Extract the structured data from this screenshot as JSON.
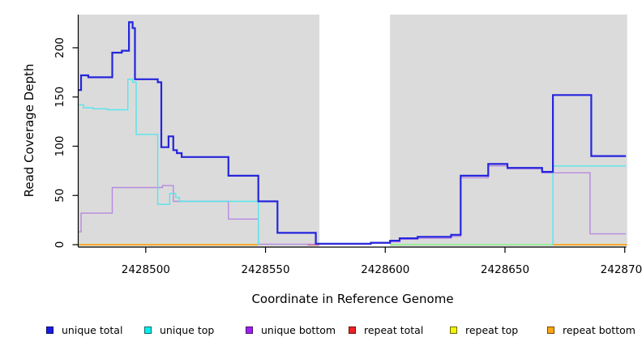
{
  "figure": {
    "background": "#ffffff",
    "plot_background": "#dbdbdb"
  },
  "legend": {
    "items": [
      {
        "label": "unique total",
        "color": "#1a1ae6"
      },
      {
        "label": "unique top",
        "color": "#00eeee"
      },
      {
        "label": "unique bottom",
        "color": "#a020f0"
      },
      {
        "label": "repeat total",
        "color": "#ee2222"
      },
      {
        "label": "repeat top",
        "color": "#f2f20a"
      },
      {
        "label": "repeat bottom",
        "color": "#ffa510"
      }
    ]
  },
  "chart_data": {
    "type": "line",
    "step": true,
    "title": "",
    "xlabel": "Coordinate in Reference Genome",
    "ylabel": "Read Coverage Depth",
    "xlim": [
      2428472,
      2428701
    ],
    "ylim": [
      0,
      234
    ],
    "x_ticks": [
      2428500,
      2428550,
      2428600,
      2428650,
      2428700
    ],
    "y_ticks": [
      0,
      50,
      100,
      150,
      200
    ],
    "grid": false,
    "legend_position": "bottom",
    "shaded_regions": [
      {
        "from": 2428472,
        "to": 2428572.5,
        "color": "#dbdbdb"
      },
      {
        "from": 2428602,
        "to": 2428701,
        "color": "#dbdbdb"
      }
    ],
    "series": [
      {
        "name": "repeat total",
        "color": "#ea4a55",
        "width": 1.6,
        "segments": [
          [
            [
              2428567.5,
              0
            ],
            [
              2428572.5,
              0
            ]
          ]
        ]
      },
      {
        "name": "repeat top",
        "color": "#90ee90",
        "width": 1.8,
        "appearance_note": "yellow line overlapping cyan at depth 0 renders pale green",
        "segments": [
          [
            [
              2428602,
              0
            ],
            [
              2428670,
              0
            ]
          ]
        ]
      },
      {
        "name": "repeat bottom",
        "color": "#ffa315",
        "width": 1.8,
        "segments": [
          [
            [
              2428472,
              0
            ],
            [
              2428547,
              0
            ]
          ],
          [
            [
              2428670,
              0
            ],
            [
              2428701,
              0
            ]
          ]
        ]
      },
      {
        "name": "unique bottom",
        "color": "#b78ae0",
        "width": 1.4,
        "segments": [
          [
            [
              2428472,
              13
            ],
            [
              2428473,
              32
            ],
            [
              2428486,
              58
            ],
            [
              2428507,
              60
            ],
            [
              2428511.5,
              44
            ],
            [
              2428534.5,
              26
            ],
            [
              2428547,
              0.5
            ],
            [
              2428571,
              0.4
            ],
            [
              2428594,
              1.5
            ],
            [
              2428602,
              3
            ],
            [
              2428606,
              5.5
            ],
            [
              2428613.5,
              6.5
            ],
            [
              2428627.5,
              8.5
            ],
            [
              2428631.5,
              68
            ],
            [
              2428643,
              80
            ],
            [
              2428651,
              77
            ],
            [
              2428665.5,
              73
            ],
            [
              2428685.5,
              11
            ],
            [
              2428700.5,
              11
            ]
          ]
        ]
      },
      {
        "name": "unique top",
        "color": "#55e6ec",
        "width": 1.4,
        "segments": [
          [
            [
              2428472,
              142
            ],
            [
              2428474,
              139
            ],
            [
              2428478,
              138
            ],
            [
              2428484,
              137
            ],
            [
              2428492.5,
              168
            ],
            [
              2428494.5,
              165
            ],
            [
              2428496,
              112
            ],
            [
              2428505,
              41
            ],
            [
              2428510,
              52
            ],
            [
              2428512.5,
              48
            ],
            [
              2428514,
              44
            ],
            [
              2428547,
              0
            ]
          ],
          [
            [
              2428670,
              0
            ],
            [
              2428670,
              80
            ],
            [
              2428700.5,
              80
            ]
          ]
        ]
      },
      {
        "name": "unique total",
        "color": "#2525dd",
        "width": 2.2,
        "segments": [
          [
            [
              2428472,
              157
            ],
            [
              2428473,
              172
            ],
            [
              2428476,
              170
            ],
            [
              2428486,
              195
            ],
            [
              2428490,
              197
            ],
            [
              2428493,
              226
            ],
            [
              2428494.5,
              220
            ],
            [
              2428495.5,
              168
            ],
            [
              2428505,
              165
            ],
            [
              2428506.5,
              99
            ],
            [
              2428509.5,
              110
            ],
            [
              2428511.5,
              96
            ],
            [
              2428513,
              93
            ],
            [
              2428515,
              89
            ],
            [
              2428534.5,
              70
            ],
            [
              2428547,
              44
            ],
            [
              2428555,
              12
            ],
            [
              2428571,
              1
            ],
            [
              2428594,
              2
            ],
            [
              2428602,
              4
            ],
            [
              2428606,
              6.5
            ],
            [
              2428613.5,
              8
            ],
            [
              2428627.5,
              10
            ],
            [
              2428631.5,
              70
            ],
            [
              2428643,
              82
            ],
            [
              2428651,
              78
            ],
            [
              2428665.5,
              74
            ],
            [
              2428670,
              152
            ],
            [
              2428686,
              90
            ],
            [
              2428700.5,
              90
            ]
          ]
        ]
      }
    ]
  }
}
